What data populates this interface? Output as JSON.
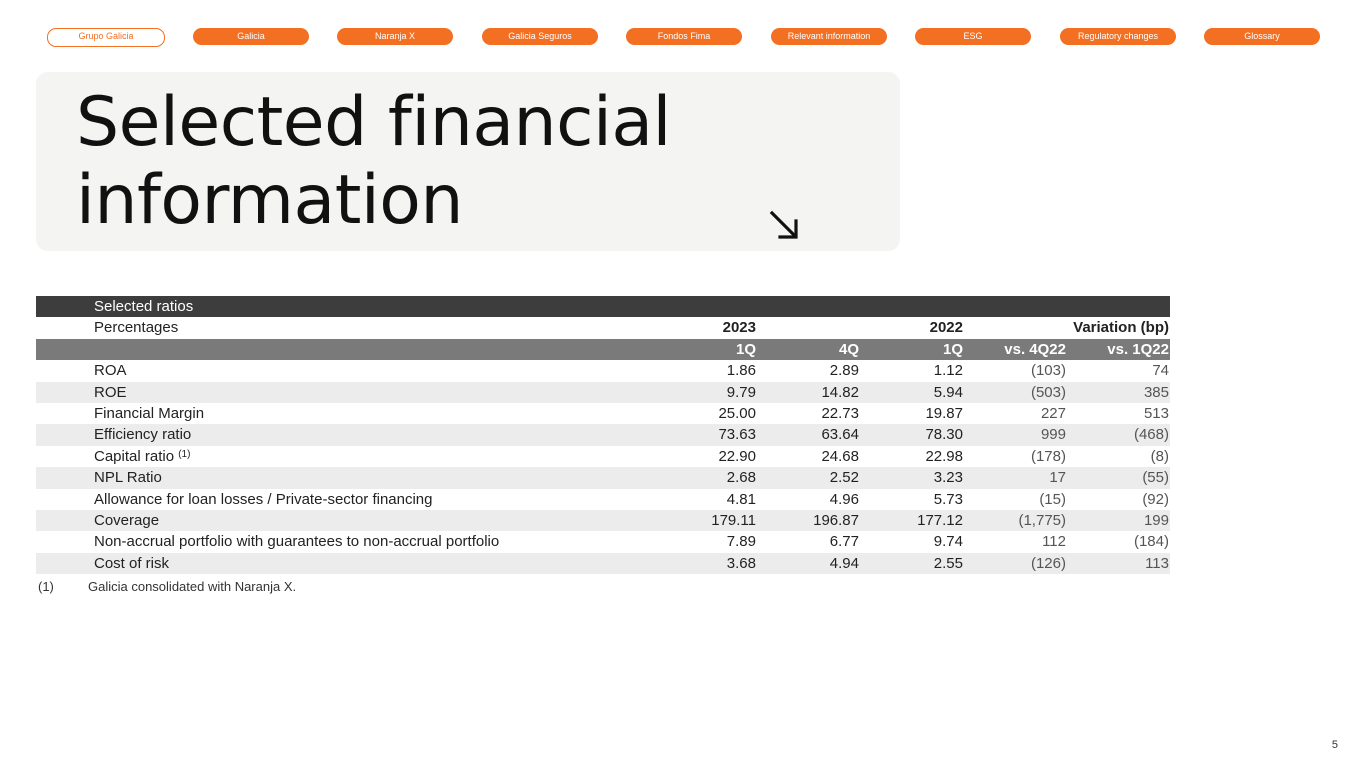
{
  "nav": {
    "tabs": [
      {
        "label": "Grupo Galicia",
        "active": true
      },
      {
        "label": "Galicia",
        "active": false
      },
      {
        "label": "Naranja X",
        "active": false
      },
      {
        "label": "Galicia Seguros",
        "active": false
      },
      {
        "label": "Fondos Fima",
        "active": false
      },
      {
        "label": "Relevant information",
        "active": false
      },
      {
        "label": "ESG",
        "active": false
      },
      {
        "label": "Regulatory changes",
        "active": false
      },
      {
        "label": "Glossary",
        "active": false
      }
    ]
  },
  "title": {
    "line1": "Selected financial",
    "line2": "information",
    "icon": "arrow-down-right-icon"
  },
  "table": {
    "section_label": "Selected ratios",
    "header": {
      "label": "Percentages",
      "year_2023": "2023",
      "year_2022": "2022",
      "variation": "Variation (bp)"
    },
    "subheader": [
      "1Q",
      "4Q",
      "1Q",
      "vs. 4Q22",
      "vs. 1Q22"
    ],
    "rows": [
      {
        "label": "ROA",
        "note": "",
        "values": [
          "1.86",
          "2.89",
          "1.12",
          "(103)",
          "74"
        ]
      },
      {
        "label": "ROE",
        "note": "",
        "values": [
          "9.79",
          "14.82",
          "5.94",
          "(503)",
          "385"
        ]
      },
      {
        "label": "Financial Margin",
        "note": "",
        "values": [
          "25.00",
          "22.73",
          "19.87",
          "227",
          "513"
        ]
      },
      {
        "label": "Efficiency ratio",
        "note": "",
        "values": [
          "73.63",
          "63.64",
          "78.30",
          "999",
          "(468)"
        ]
      },
      {
        "label": "Capital ratio",
        "note": "(1)",
        "values": [
          "22.90",
          "24.68",
          "22.98",
          "(178)",
          "(8)"
        ]
      },
      {
        "label": "NPL Ratio",
        "note": "",
        "values": [
          "2.68",
          "2.52",
          "3.23",
          "17",
          "(55)"
        ]
      },
      {
        "label": "Allowance for loan losses / Private-sector financing",
        "note": "",
        "values": [
          "4.81",
          "4.96",
          "5.73",
          "(15)",
          "(92)"
        ]
      },
      {
        "label": "Coverage",
        "note": "",
        "values": [
          "179.11",
          "196.87",
          "177.12",
          "(1,775)",
          "199"
        ]
      },
      {
        "label": "Non-accrual portfolio with guarantees to non-accrual portfolio",
        "note": "",
        "values": [
          "7.89",
          "6.77",
          "9.74",
          "112",
          "(184)"
        ]
      },
      {
        "label": "Cost of risk",
        "note": "",
        "values": [
          "3.68",
          "4.94",
          "2.55",
          "(126)",
          "113"
        ]
      }
    ]
  },
  "footnote": {
    "mark": "(1)",
    "text": "Galicia consolidated with Naranja X."
  },
  "page_number": "5",
  "colors": {
    "accent": "#f36f21",
    "dark_header": "#3d3d3d",
    "mid_header": "#7a7a7a",
    "row_shade": "#ececec",
    "title_box": "#f4f4f3"
  }
}
